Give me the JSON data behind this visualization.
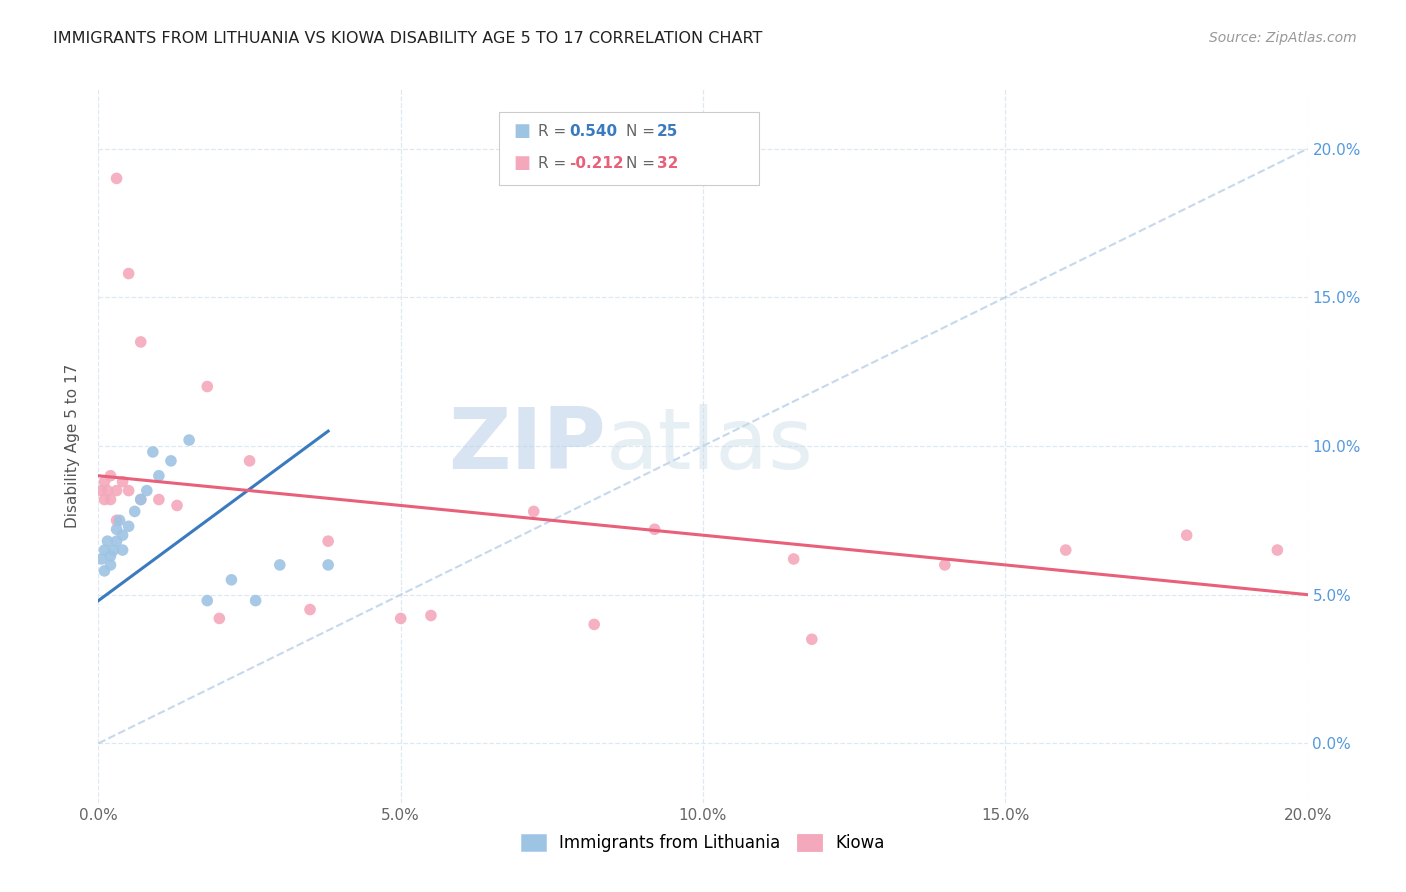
{
  "title": "IMMIGRANTS FROM LITHUANIA VS KIOWA DISABILITY AGE 5 TO 17 CORRELATION CHART",
  "source": "Source: ZipAtlas.com",
  "ylabel": "Disability Age 5 to 17",
  "xlim": [
    0.0,
    0.2
  ],
  "ylim": [
    -0.02,
    0.22
  ],
  "ytick_values": [
    0.0,
    0.05,
    0.1,
    0.15,
    0.2
  ],
  "ytick_labels": [
    "0.0%",
    "5.0%",
    "10.0%",
    "15.0%",
    "20.0%"
  ],
  "xtick_values": [
    0.0,
    0.05,
    0.1,
    0.15,
    0.2
  ],
  "xtick_labels": [
    "0.0%",
    "5.0%",
    "10.0%",
    "15.0%",
    "20.0%"
  ],
  "blue_color": "#9ec4e4",
  "pink_color": "#f4a8bb",
  "blue_line_color": "#3a7abf",
  "pink_line_color": "#e8607a",
  "diagonal_color": "#b8cfe8",
  "watermark_zip": "ZIP",
  "watermark_atlas": "atlas",
  "blue_x": [
    0.0005,
    0.001,
    0.001,
    0.0015,
    0.002,
    0.002,
    0.0025,
    0.003,
    0.003,
    0.0035,
    0.004,
    0.004,
    0.005,
    0.006,
    0.007,
    0.008,
    0.009,
    0.01,
    0.012,
    0.015,
    0.018,
    0.022,
    0.026,
    0.03,
    0.038
  ],
  "blue_y": [
    0.062,
    0.058,
    0.065,
    0.068,
    0.063,
    0.06,
    0.065,
    0.068,
    0.072,
    0.075,
    0.07,
    0.065,
    0.073,
    0.078,
    0.082,
    0.085,
    0.098,
    0.09,
    0.095,
    0.102,
    0.048,
    0.055,
    0.048,
    0.06,
    0.06
  ],
  "pink_x": [
    0.0005,
    0.001,
    0.001,
    0.0015,
    0.002,
    0.002,
    0.003,
    0.003,
    0.004,
    0.005,
    0.007,
    0.01,
    0.013,
    0.018,
    0.025,
    0.038,
    0.055,
    0.072,
    0.092,
    0.115,
    0.14,
    0.16,
    0.18,
    0.195,
    0.003,
    0.005,
    0.007,
    0.02,
    0.035,
    0.05,
    0.082,
    0.118
  ],
  "pink_y": [
    0.085,
    0.082,
    0.088,
    0.085,
    0.09,
    0.082,
    0.085,
    0.075,
    0.088,
    0.085,
    0.082,
    0.082,
    0.08,
    0.12,
    0.095,
    0.068,
    0.043,
    0.078,
    0.072,
    0.062,
    0.06,
    0.065,
    0.07,
    0.065,
    0.19,
    0.158,
    0.135,
    0.042,
    0.045,
    0.042,
    0.04,
    0.035
  ],
  "blue_trend_x": [
    0.0,
    0.038
  ],
  "blue_trend_y_start": 0.048,
  "blue_trend_y_end": 0.105,
  "pink_trend_x": [
    0.0,
    0.2
  ],
  "pink_trend_y_start": 0.09,
  "pink_trend_y_end": 0.05
}
